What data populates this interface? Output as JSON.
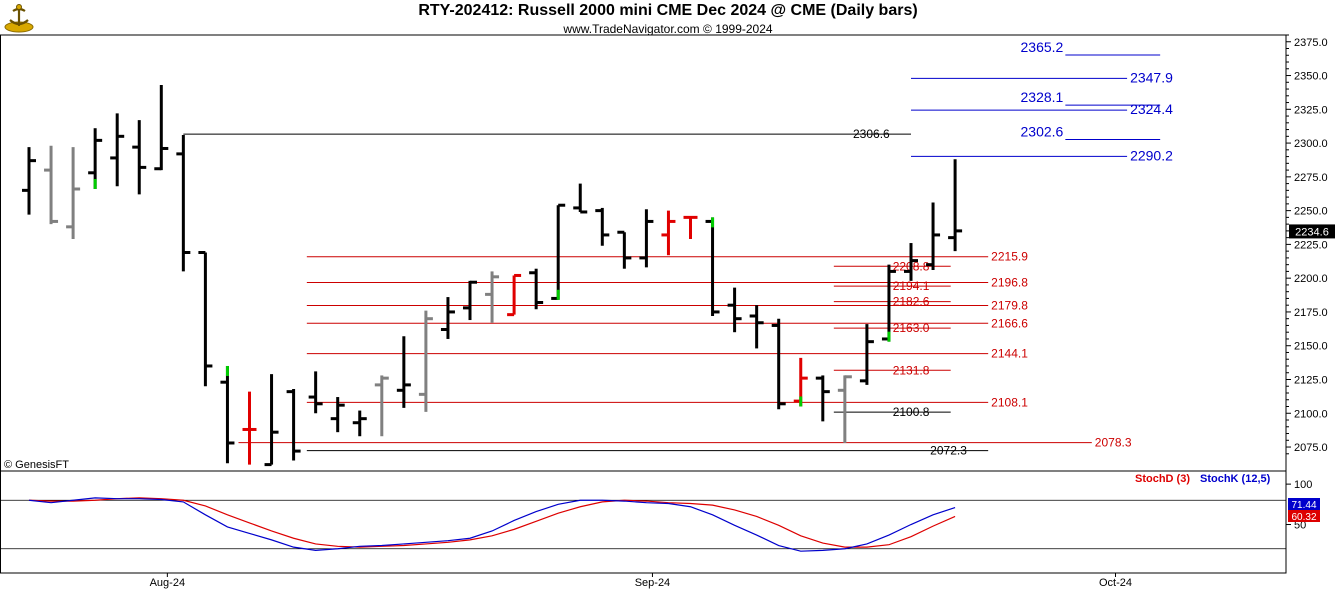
{
  "header": {
    "title": "RTY-202412:  Russell 2000 mini CME Dec 2024 @ CME  (Daily bars)",
    "subtitle": "www.TradeNavigator.com © 1999-2024"
  },
  "watermark": "© GenesisFT",
  "colors": {
    "bar_black": "#000000",
    "bar_gray": "#808080",
    "bar_red": "#e00000",
    "bar_green": "#00cc00",
    "level_blue": "#0000cc",
    "level_red": "#cc0000",
    "level_black": "#000000",
    "stochD": "#dd0000",
    "stochK": "#0000cc"
  },
  "chart_data": [
    {
      "type": "ohlc",
      "title": "RTY-202412:  Russell 2000 mini CME Dec 2024 @ CME  (Daily bars)",
      "ylim": [
        2058,
        2380
      ],
      "y_ticks": [
        "2375.0",
        "2350.0",
        "2325.0",
        "2300.0",
        "2275.0",
        "2250.0",
        "2225.0",
        "2200.0",
        "2175.0",
        "2150.0",
        "2125.0",
        "2100.0",
        "2075.0"
      ],
      "y_tick_values": [
        2375,
        2350,
        2325,
        2300,
        2275,
        2250,
        2225,
        2200,
        2175,
        2150,
        2125,
        2100,
        2075
      ],
      "x_labels": [
        {
          "label": "Aug-24",
          "index": 7
        },
        {
          "label": "Sep-24",
          "index": 29
        },
        {
          "label": "Oct-24",
          "index": 50
        }
      ],
      "last_price": "2234.6",
      "last_value": 2234.6,
      "bars": [
        {
          "o": 2265,
          "h": 2297,
          "l": 2247,
          "c": 2287,
          "color": "black"
        },
        {
          "o": 2280,
          "h": 2298,
          "l": 2240,
          "c": 2242,
          "color": "gray"
        },
        {
          "o": 2238,
          "h": 2297,
          "l": 2229,
          "c": 2266,
          "color": "gray"
        },
        {
          "o": 2278,
          "h": 2311,
          "l": 2266,
          "c": 2302,
          "color": "black",
          "tip": "green_low"
        },
        {
          "o": 2289,
          "h": 2322,
          "l": 2268,
          "c": 2305,
          "color": "black"
        },
        {
          "o": 2297,
          "h": 2317,
          "l": 2262,
          "c": 2282,
          "color": "black"
        },
        {
          "o": 2281,
          "h": 2343,
          "l": 2280,
          "c": 2296,
          "color": "black"
        },
        {
          "o": 2292,
          "h": 2306,
          "l": 2205,
          "c": 2219,
          "color": "black"
        },
        {
          "o": 2219,
          "h": 2219,
          "l": 2120,
          "c": 2135,
          "color": "black"
        },
        {
          "o": 2123,
          "h": 2135,
          "l": 2063,
          "c": 2078,
          "color": "black",
          "tip": "green_high"
        },
        {
          "o": 2088,
          "h": 2116,
          "l": 2062,
          "c": 2088,
          "color": "red"
        },
        {
          "o": 2062,
          "h": 2129,
          "l": 2062,
          "c": 2086,
          "color": "black"
        },
        {
          "o": 2116,
          "h": 2118,
          "l": 2065,
          "c": 2072,
          "color": "black"
        },
        {
          "o": 2112,
          "h": 2131,
          "l": 2100,
          "c": 2107,
          "color": "black"
        },
        {
          "o": 2096,
          "h": 2112,
          "l": 2086,
          "c": 2106,
          "color": "black"
        },
        {
          "o": 2093,
          "h": 2102,
          "l": 2083,
          "c": 2096,
          "color": "black"
        },
        {
          "o": 2121,
          "h": 2128,
          "l": 2083,
          "c": 2126,
          "color": "gray"
        },
        {
          "o": 2117,
          "h": 2157,
          "l": 2104,
          "c": 2121,
          "color": "black"
        },
        {
          "o": 2114,
          "h": 2176,
          "l": 2101,
          "c": 2170,
          "color": "gray"
        },
        {
          "o": 2162,
          "h": 2186,
          "l": 2155,
          "c": 2175,
          "color": "black"
        },
        {
          "o": 2178,
          "h": 2198,
          "l": 2169,
          "c": 2197,
          "color": "black"
        },
        {
          "o": 2188,
          "h": 2205,
          "l": 2167,
          "c": 2201,
          "color": "gray"
        },
        {
          "o": 2173,
          "h": 2202,
          "l": 2173,
          "c": 2202,
          "color": "red"
        },
        {
          "o": 2204,
          "h": 2207,
          "l": 2177,
          "c": 2182,
          "color": "black"
        },
        {
          "o": 2185,
          "h": 2254,
          "l": 2184,
          "c": 2254,
          "color": "black",
          "tip": "green_low"
        },
        {
          "o": 2252,
          "h": 2270,
          "l": 2249,
          "c": 2249,
          "color": "black"
        },
        {
          "o": 2250,
          "h": 2252,
          "l": 2224,
          "c": 2232,
          "color": "black"
        },
        {
          "o": 2234,
          "h": 2234,
          "l": 2207,
          "c": 2215,
          "color": "black"
        },
        {
          "o": 2215,
          "h": 2251,
          "l": 2208,
          "c": 2242,
          "color": "black"
        },
        {
          "o": 2232,
          "h": 2250,
          "l": 2217,
          "c": 2242,
          "color": "red"
        },
        {
          "o": 2245,
          "h": 2246,
          "l": 2229,
          "c": 2245,
          "color": "red"
        },
        {
          "o": 2242,
          "h": 2245,
          "l": 2172,
          "c": 2175,
          "color": "black",
          "tip": "green_high"
        },
        {
          "o": 2180,
          "h": 2193,
          "l": 2160,
          "c": 2170,
          "color": "black"
        },
        {
          "o": 2172,
          "h": 2180,
          "l": 2148,
          "c": 2167,
          "color": "black"
        },
        {
          "o": 2165,
          "h": 2170,
          "l": 2103,
          "c": 2107,
          "color": "black"
        },
        {
          "o": 2109,
          "h": 2141,
          "l": 2105,
          "c": 2126,
          "color": "red",
          "tip": "green_low"
        },
        {
          "o": 2126,
          "h": 2128,
          "l": 2094,
          "c": 2116,
          "color": "black"
        },
        {
          "o": 2117,
          "h": 2128,
          "l": 2078,
          "c": 2127,
          "color": "gray"
        },
        {
          "o": 2124,
          "h": 2166,
          "l": 2121,
          "c": 2153,
          "color": "black"
        },
        {
          "o": 2155,
          "h": 2210,
          "l": 2153,
          "c": 2205,
          "color": "black",
          "tip": "green_low"
        },
        {
          "o": 2205,
          "h": 2226,
          "l": 2198,
          "c": 2213,
          "color": "black"
        },
        {
          "o": 2210,
          "h": 2256,
          "l": 2206,
          "c": 2232,
          "color": "black"
        },
        {
          "o": 2230,
          "h": 2288,
          "l": 2220,
          "c": 2235,
          "color": "black"
        }
      ],
      "levels": [
        {
          "label": "2365.2",
          "value": 2365.2,
          "color": "blue",
          "x0": 47,
          "x1": 51.3,
          "side": "left"
        },
        {
          "label": "2347.9",
          "value": 2347.9,
          "color": "blue",
          "x0": 40,
          "x1": 49.8,
          "side": "right"
        },
        {
          "label": "2328.1",
          "value": 2328.1,
          "color": "blue",
          "x0": 47,
          "x1": 51.3,
          "side": "left"
        },
        {
          "label": "2324.4",
          "value": 2324.4,
          "color": "blue",
          "x0": 40,
          "x1": 49.8,
          "side": "right"
        },
        {
          "label": "2306.6",
          "value": 2306.6,
          "color": "black",
          "x0": 7,
          "x1": 40,
          "side": "right_inside"
        },
        {
          "label": "2302.6",
          "value": 2302.6,
          "color": "blue",
          "x0": 47,
          "x1": 51.3,
          "side": "left"
        },
        {
          "label": "2290.2",
          "value": 2290.2,
          "color": "blue",
          "x0": 40,
          "x1": 49.8,
          "side": "right"
        },
        {
          "label": "2215.9",
          "value": 2215.9,
          "color": "red",
          "x0": 12.6,
          "x1": 43.5,
          "side": "right"
        },
        {
          "label": "2208.8",
          "value": 2208.8,
          "color": "red",
          "x0": 36.5,
          "x1": 41.8,
          "side": "right_inside"
        },
        {
          "label": "2196.8",
          "value": 2196.8,
          "color": "red",
          "x0": 12.6,
          "x1": 43.5,
          "side": "right"
        },
        {
          "label": "2194.1",
          "value": 2194.1,
          "color": "red",
          "x0": 36.5,
          "x1": 41.8,
          "side": "right_inside"
        },
        {
          "label": "2182.6",
          "value": 2182.6,
          "color": "red",
          "x0": 36.5,
          "x1": 41.8,
          "side": "right_inside"
        },
        {
          "label": "2179.8",
          "value": 2179.8,
          "color": "red",
          "x0": 12.6,
          "x1": 43.5,
          "side": "right"
        },
        {
          "label": "2166.6",
          "value": 2166.6,
          "color": "red",
          "x0": 12.6,
          "x1": 43.5,
          "side": "right"
        },
        {
          "label": "2163.0",
          "value": 2163.0,
          "color": "red",
          "x0": 36.5,
          "x1": 41.8,
          "side": "right_inside"
        },
        {
          "label": "2144.1",
          "value": 2144.1,
          "color": "red",
          "x0": 12.6,
          "x1": 43.5,
          "side": "right"
        },
        {
          "label": "2131.8",
          "value": 2131.8,
          "color": "red",
          "x0": 36.5,
          "x1": 41.8,
          "side": "right_inside"
        },
        {
          "label": "2108.1",
          "value": 2108.1,
          "color": "red",
          "x0": 12.6,
          "x1": 43.5,
          "side": "right"
        },
        {
          "label": "2100.8",
          "value": 2100.8,
          "color": "black",
          "x0": 36.5,
          "x1": 41.8,
          "side": "right_inside"
        },
        {
          "label": "2078.3",
          "value": 2078.3,
          "color": "red",
          "x0": 9.5,
          "x1": 48.2,
          "side": "right"
        },
        {
          "label": "2072.3",
          "value": 2072.3,
          "color": "black",
          "x0": 12.6,
          "x1": 43.5,
          "side": "right_inside"
        }
      ]
    },
    {
      "type": "line",
      "title": "",
      "legend": [
        {
          "name": "StochD (3)",
          "color": "#dd0000"
        },
        {
          "name": "StochK (12,5)",
          "color": "#0000cc"
        }
      ],
      "y_ticks": [
        "100",
        "50"
      ],
      "y_tick_values": [
        100,
        50
      ],
      "ylim": [
        -10,
        115
      ],
      "reference_lines": [
        80,
        20
      ],
      "last_labels": [
        {
          "label": "71.44",
          "value": 71.44,
          "color": "#0000cc"
        },
        {
          "label": "60.32",
          "value": 60.32,
          "color": "#dd0000"
        }
      ],
      "series": [
        {
          "name": "StochD (3)",
          "values": [
            80,
            79,
            79,
            80,
            82,
            83,
            82,
            80,
            73,
            62,
            52,
            42,
            33,
            26,
            23,
            22,
            23,
            24,
            26,
            28,
            31,
            36,
            44,
            54,
            64,
            72,
            78,
            80,
            79,
            77,
            76,
            74,
            68,
            60,
            49,
            36,
            27,
            22,
            22,
            25,
            35,
            48,
            60
          ]
        },
        {
          "name": "StochK (12,5)",
          "values": [
            80,
            77,
            80,
            83,
            82,
            82,
            81,
            78,
            62,
            47,
            39,
            31,
            22,
            18,
            20,
            23,
            24,
            26,
            28,
            30,
            33,
            42,
            55,
            66,
            75,
            80,
            80,
            79,
            77,
            76,
            72,
            62,
            49,
            37,
            24,
            17,
            18,
            20,
            26,
            37,
            50,
            62,
            71
          ]
        }
      ]
    }
  ]
}
